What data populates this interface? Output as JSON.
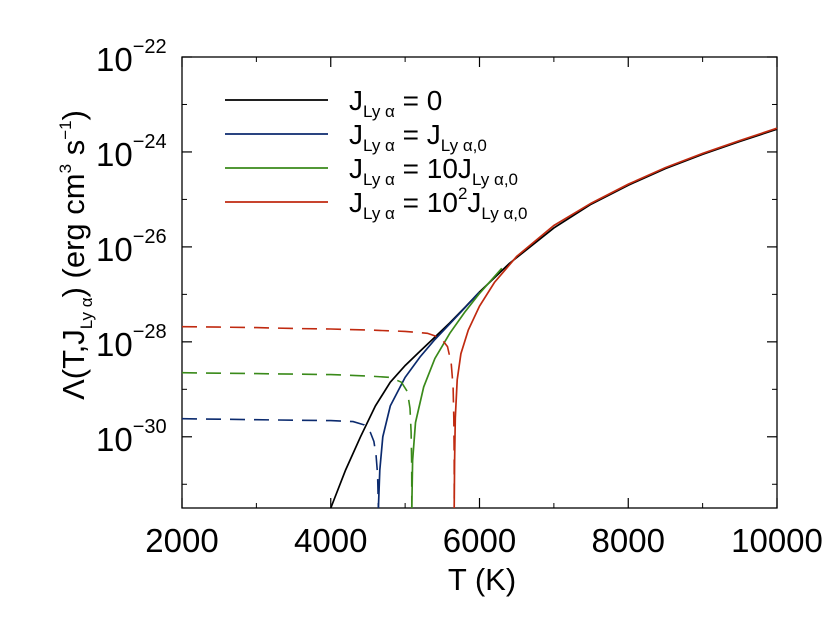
{
  "chart_data": {
    "type": "line",
    "xlabel": "T (K)",
    "ylabel": {
      "main": "Λ(T,J",
      "sub": "Ly α",
      "close": ") (erg cm",
      "sup1": "3",
      "mid": " s",
      "sup2": "−1",
      "end": ")"
    },
    "xlim": [
      2000,
      10000
    ],
    "ylim_log10": [
      -31.5,
      -22
    ],
    "y_scale": "log",
    "xticks": [
      2000,
      4000,
      6000,
      8000,
      10000
    ],
    "xtick_labels": [
      "2000",
      "4000",
      "6000",
      "8000",
      "10000"
    ],
    "yticks_log10": [
      -30,
      -28,
      -26,
      -24,
      -22
    ],
    "ytick_labels": [
      {
        "base": "10",
        "exp": "−30"
      },
      {
        "base": "10",
        "exp": "−28"
      },
      {
        "base": "10",
        "exp": "−26"
      },
      {
        "base": "10",
        "exp": "−24"
      },
      {
        "base": "10",
        "exp": "−22"
      }
    ],
    "legend_position": "top-left",
    "legend": [
      {
        "J": "J",
        "sub": "Ly α",
        "rest": " = 0",
        "sup": "",
        "sub2": "",
        "color": "#000000"
      },
      {
        "J": "J",
        "sub": "Ly α",
        "rest": " = J",
        "sup": "",
        "sub2": "Ly α,0",
        "color": "#0b2a6e"
      },
      {
        "J": "J",
        "sub": "Ly α",
        "rest": " = 10J",
        "sup": "",
        "sub2": "Ly α,0",
        "color": "#3a8a1a"
      },
      {
        "J": "J",
        "sub": "Ly α",
        "rest": " = 10",
        "sup": "2",
        "rest2": "J",
        "sub2": "Ly α,0",
        "color": "#c02a10"
      }
    ],
    "series": [
      {
        "color": "#000000",
        "solid": [
          [
            4000,
            -31.5
          ],
          [
            4200,
            -30.7
          ],
          [
            4400,
            -30.0
          ],
          [
            4600,
            -29.35
          ],
          [
            4800,
            -28.85
          ],
          [
            5000,
            -28.5
          ],
          [
            5200,
            -28.2
          ],
          [
            5400,
            -27.9
          ],
          [
            5600,
            -27.6
          ],
          [
            5800,
            -27.28
          ],
          [
            6000,
            -26.95
          ],
          [
            6400,
            -26.35
          ],
          [
            7000,
            -25.6
          ],
          [
            7500,
            -25.1
          ],
          [
            8000,
            -24.7
          ],
          [
            8500,
            -24.35
          ],
          [
            9000,
            -24.05
          ],
          [
            9500,
            -23.78
          ],
          [
            10000,
            -23.52
          ]
        ],
        "dashed": []
      },
      {
        "color": "#0b2a6e",
        "solid": [
          [
            4640,
            -31.5
          ],
          [
            4660,
            -30.7
          ],
          [
            4700,
            -30.0
          ],
          [
            4800,
            -29.35
          ],
          [
            5000,
            -28.75
          ],
          [
            5200,
            -28.32
          ],
          [
            5400,
            -27.95
          ],
          [
            5600,
            -27.62
          ],
          [
            5800,
            -27.29
          ],
          [
            6000,
            -26.95
          ]
        ],
        "dashed": [
          [
            2000,
            -29.62
          ],
          [
            2500,
            -29.63
          ],
          [
            3000,
            -29.64
          ],
          [
            3500,
            -29.65
          ],
          [
            4000,
            -29.66
          ],
          [
            4300,
            -29.68
          ],
          [
            4450,
            -29.75
          ],
          [
            4530,
            -29.9
          ],
          [
            4580,
            -30.1
          ],
          [
            4610,
            -30.4
          ],
          [
            4630,
            -30.8
          ],
          [
            4640,
            -31.5
          ]
        ]
      },
      {
        "color": "#3a8a1a",
        "solid": [
          [
            5090,
            -31.5
          ],
          [
            5100,
            -30.5
          ],
          [
            5140,
            -29.7
          ],
          [
            5250,
            -28.95
          ],
          [
            5400,
            -28.35
          ],
          [
            5600,
            -27.82
          ],
          [
            5800,
            -27.38
          ],
          [
            6000,
            -26.98
          ],
          [
            6300,
            -26.45
          ]
        ],
        "dashed": [
          [
            2000,
            -28.65
          ],
          [
            2500,
            -28.66
          ],
          [
            3000,
            -28.67
          ],
          [
            3500,
            -28.68
          ],
          [
            4000,
            -28.69
          ],
          [
            4500,
            -28.72
          ],
          [
            4800,
            -28.75
          ],
          [
            4950,
            -28.85
          ],
          [
            5030,
            -29.05
          ],
          [
            5065,
            -29.4
          ],
          [
            5080,
            -29.9
          ],
          [
            5088,
            -30.6
          ],
          [
            5090,
            -31.5
          ]
        ]
      },
      {
        "color": "#c02a10",
        "solid": [
          [
            5660,
            -31.5
          ],
          [
            5665,
            -30.5
          ],
          [
            5675,
            -29.6
          ],
          [
            5700,
            -28.8
          ],
          [
            5750,
            -28.25
          ],
          [
            5850,
            -27.75
          ],
          [
            6000,
            -27.25
          ],
          [
            6200,
            -26.75
          ],
          [
            6500,
            -26.2
          ],
          [
            7000,
            -25.55
          ],
          [
            7500,
            -25.08
          ],
          [
            8000,
            -24.68
          ],
          [
            8500,
            -24.33
          ],
          [
            9000,
            -24.03
          ],
          [
            9500,
            -23.76
          ],
          [
            10000,
            -23.5
          ]
        ],
        "dashed": [
          [
            2000,
            -27.68
          ],
          [
            2500,
            -27.69
          ],
          [
            3000,
            -27.7
          ],
          [
            3500,
            -27.72
          ],
          [
            4000,
            -27.73
          ],
          [
            4500,
            -27.75
          ],
          [
            5000,
            -27.78
          ],
          [
            5300,
            -27.82
          ],
          [
            5480,
            -27.92
          ],
          [
            5570,
            -28.1
          ],
          [
            5620,
            -28.45
          ],
          [
            5645,
            -28.95
          ],
          [
            5655,
            -29.6
          ],
          [
            5660,
            -30.5
          ],
          [
            5660,
            -31.5
          ]
        ]
      }
    ]
  }
}
